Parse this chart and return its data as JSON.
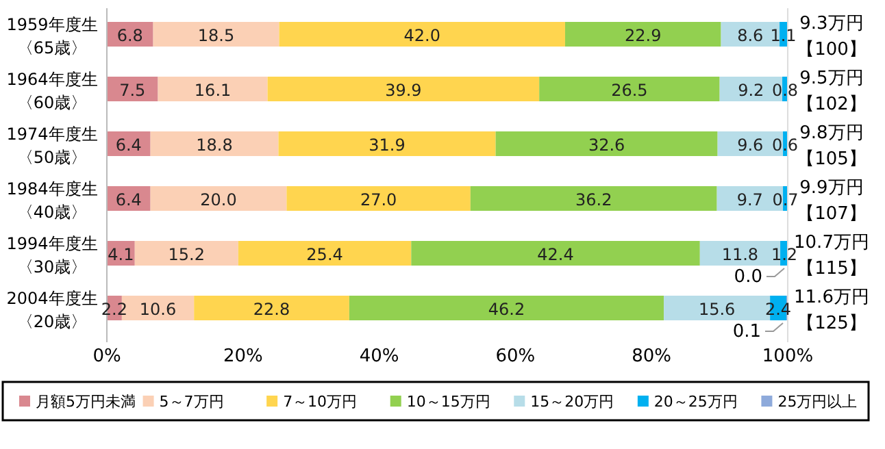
{
  "chart_data": {
    "type": "bar",
    "orientation": "horizontal",
    "stacked": true,
    "categories": [
      "1959年度生〈65歳〉",
      "1964年度生〈60歳〉",
      "1974年度生〈50歳〉",
      "1984年度生〈40歳〉",
      "1994年度生〈30歳〉",
      "2004年度生〈20歳〉"
    ],
    "series": [
      {
        "name": "月額5万円未満",
        "color": "#d9888f",
        "values": [
          6.8,
          7.5,
          6.4,
          6.4,
          4.1,
          2.2
        ],
        "value_labels": [
          "6.8",
          "7.5",
          "6.4",
          "6.4",
          "4.1",
          "2.2"
        ]
      },
      {
        "name": "5～7万円",
        "color": "#fbd0b5",
        "values": [
          18.5,
          16.1,
          18.8,
          20.0,
          15.2,
          10.6
        ],
        "value_labels": [
          "18.5",
          "16.1",
          "18.8",
          "20.0",
          "15.2",
          "10.6"
        ]
      },
      {
        "name": "7～10万円",
        "color": "#ffd54f",
        "values": [
          42.0,
          39.9,
          31.9,
          27.0,
          25.4,
          22.8
        ],
        "value_labels": [
          "42.0",
          "39.9",
          "31.9",
          "27.0",
          "25.4",
          "22.8"
        ]
      },
      {
        "name": "10～15万円",
        "color": "#92d050",
        "values": [
          22.9,
          26.5,
          32.6,
          36.2,
          42.4,
          46.2
        ],
        "value_labels": [
          "22.9",
          "26.5",
          "32.6",
          "36.2",
          "42.4",
          "46.2"
        ]
      },
      {
        "name": "15～20万円",
        "color": "#b7dde8",
        "values": [
          8.6,
          9.2,
          9.6,
          9.7,
          11.8,
          15.6
        ],
        "value_labels": [
          "8.6",
          "9.2",
          "9.6",
          "9.7",
          "11.8",
          "15.6"
        ]
      },
      {
        "name": "20～25万円",
        "color": "#00b0f0",
        "values": [
          1.1,
          0.8,
          0.6,
          0.7,
          1.2,
          2.4
        ],
        "value_labels": [
          "1.1",
          "0.8",
          "0.6",
          "0.7",
          "1.2",
          "2.4"
        ]
      },
      {
        "name": "25万円以上",
        "color": "#8eaadb",
        "values": [
          null,
          null,
          null,
          null,
          0.0,
          0.1
        ],
        "value_labels": [
          null,
          null,
          null,
          null,
          "0.0",
          "0.1"
        ]
      }
    ],
    "xlim": [
      0,
      100
    ],
    "xticks": [
      {
        "value": 0,
        "label": "0%"
      },
      {
        "value": 20,
        "label": "20%"
      },
      {
        "value": 40,
        "label": "40%"
      },
      {
        "value": 60,
        "label": "60%"
      },
      {
        "value": 80,
        "label": "80%"
      },
      {
        "value": 100,
        "label": "100%"
      }
    ],
    "annotations": [
      "9.3万円【100】",
      "9.5万円【102】",
      "9.8万円【105】",
      "9.9万円【107】",
      "10.7万円【115】",
      "11.6万円【125】"
    ],
    "legend": "bottom"
  }
}
